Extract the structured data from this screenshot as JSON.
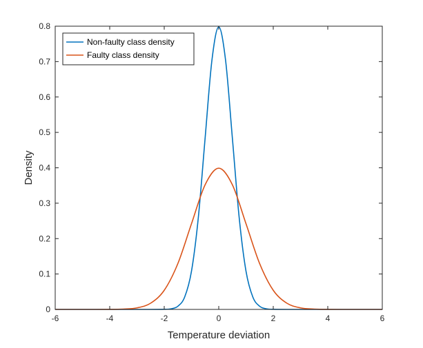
{
  "chart_data": {
    "type": "line",
    "title": "",
    "xlabel": "Temperature deviation",
    "ylabel": "Density",
    "xlim": [
      -6,
      6
    ],
    "ylim": [
      0,
      0.8
    ],
    "xticks": [
      -6,
      -4,
      -2,
      0,
      2,
      4,
      6
    ],
    "xtick_labels": [
      "-6",
      "-4",
      "-2",
      "0",
      "2",
      "4",
      "6"
    ],
    "yticks": [
      0,
      0.1,
      0.2,
      0.3,
      0.4,
      0.5,
      0.6,
      0.7,
      0.8
    ],
    "ytick_labels": [
      "0",
      "0.1",
      "0.2",
      "0.3",
      "0.4",
      "0.5",
      "0.6",
      "0.7",
      "0.8"
    ],
    "grid": false,
    "legend_position": "top-left",
    "series": [
      {
        "name": "Non-faulty class density",
        "color": "#0072BD",
        "x": [
          -6,
          -3,
          -2.5,
          -2,
          -1.75,
          -1.5,
          -1.25,
          -1,
          -0.75,
          -0.5,
          -0.25,
          0,
          0.25,
          0.5,
          0.75,
          1,
          1.25,
          1.5,
          1.75,
          2,
          2.5,
          3,
          6
        ],
        "values": [
          0,
          0,
          0,
          0.0003,
          0.0017,
          0.0089,
          0.035,
          0.108,
          0.259,
          0.4839,
          0.704,
          0.7979,
          0.704,
          0.4839,
          0.259,
          0.108,
          0.035,
          0.0089,
          0.0017,
          0.0003,
          0,
          0,
          0
        ]
      },
      {
        "name": "Faulty class density",
        "color": "#D95319",
        "x": [
          -6,
          -5,
          -4,
          -3.5,
          -3,
          -2.5,
          -2,
          -1.5,
          -1,
          -0.5,
          0,
          0.5,
          1,
          1.5,
          2,
          2.5,
          3,
          3.5,
          4,
          5,
          6
        ],
        "values": [
          0,
          0,
          0.0001,
          0.0009,
          0.0044,
          0.0175,
          0.054,
          0.1295,
          0.242,
          0.3521,
          0.3989,
          0.3521,
          0.242,
          0.1295,
          0.054,
          0.0175,
          0.0044,
          0.0009,
          0.0001,
          0,
          0
        ]
      }
    ]
  }
}
